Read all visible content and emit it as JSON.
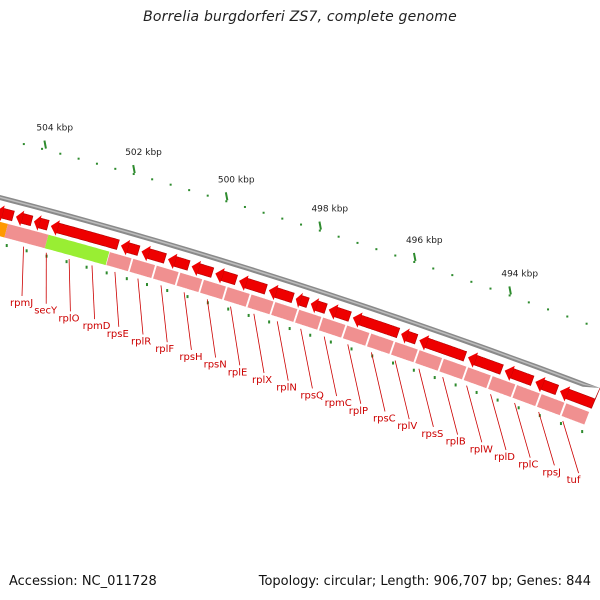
{
  "title": "Borrelia burgdorferi ZS7, complete genome",
  "accession_text": "Accession: NC_011728",
  "summary_text": "Topology: circular; Length: 906,707 bp; Genes: 844",
  "ticks": [
    {
      "kbp": 504,
      "label": "504 kbp"
    },
    {
      "kbp": 502,
      "label": "502 kbp"
    },
    {
      "kbp": 500,
      "label": "500 kbp"
    },
    {
      "kbp": 498,
      "label": "498 kbp"
    },
    {
      "kbp": 496,
      "label": "496 kbp"
    },
    {
      "kbp": 494,
      "label": "494 kbp"
    }
  ],
  "genes": [
    {
      "name": "rpmJ"
    },
    {
      "name": "secY"
    },
    {
      "name": "rplO"
    },
    {
      "name": "rpmD"
    },
    {
      "name": "rpsE"
    },
    {
      "name": "rplR"
    },
    {
      "name": "rplF"
    },
    {
      "name": "rpsH"
    },
    {
      "name": "rpsN"
    },
    {
      "name": "rplE"
    },
    {
      "name": "rplX"
    },
    {
      "name": "rplN"
    },
    {
      "name": "rpsQ"
    },
    {
      "name": "rpmC"
    },
    {
      "name": "rplP"
    },
    {
      "name": "rpsC"
    },
    {
      "name": "rplV"
    },
    {
      "name": "rpsS"
    },
    {
      "name": "rplB"
    },
    {
      "name": "rplW"
    },
    {
      "name": "rplD"
    },
    {
      "name": "rplC"
    },
    {
      "name": "rpsJ"
    },
    {
      "name": "tuf"
    }
  ],
  "colors": {
    "backbone": "#8a8a8a",
    "gene_arrow": "#ee0000",
    "feature_band": "#f09090",
    "secY_highlight": "#99ee33",
    "orange_feature": "#ff9900",
    "minor_ticks": "#2e8b2e",
    "label_text": "#cc0000"
  }
}
